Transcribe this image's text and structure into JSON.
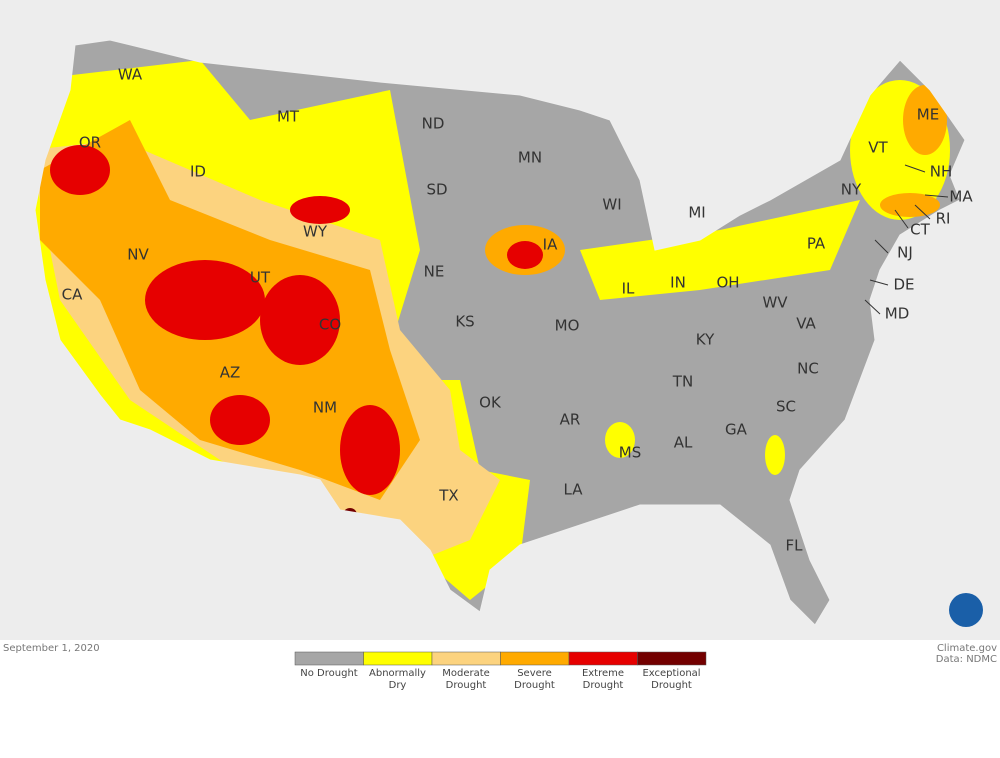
{
  "map": {
    "date": "September 1, 2020",
    "credits": [
      "Climate.gov",
      "Data: NDMC"
    ],
    "states": [
      "WA",
      "OR",
      "CA",
      "NV",
      "ID",
      "MT",
      "WY",
      "UT",
      "AZ",
      "CO",
      "NM",
      "ND",
      "SD",
      "NE",
      "KS",
      "OK",
      "TX",
      "MN",
      "IA",
      "MO",
      "AR",
      "LA",
      "WI",
      "MI",
      "IL",
      "IN",
      "OH",
      "KY",
      "TN",
      "MS",
      "AL",
      "GA",
      "FL",
      "SC",
      "NC",
      "VA",
      "WV",
      "PA",
      "NY",
      "VT",
      "NH",
      "ME",
      "MA",
      "RI",
      "CT",
      "NJ",
      "DE",
      "MD"
    ],
    "legend": [
      {
        "label": "No Drought",
        "color": "#a6a6a6"
      },
      {
        "label": "Abnormally Dry",
        "color": "#ffff00"
      },
      {
        "label": "Moderate Drought",
        "color": "#fcd37f"
      },
      {
        "label": "Severe Drought",
        "color": "#ffaa00"
      },
      {
        "label": "Extreme Drought",
        "color": "#e60000"
      },
      {
        "label": "Exceptional Drought",
        "color": "#730000"
      }
    ]
  }
}
